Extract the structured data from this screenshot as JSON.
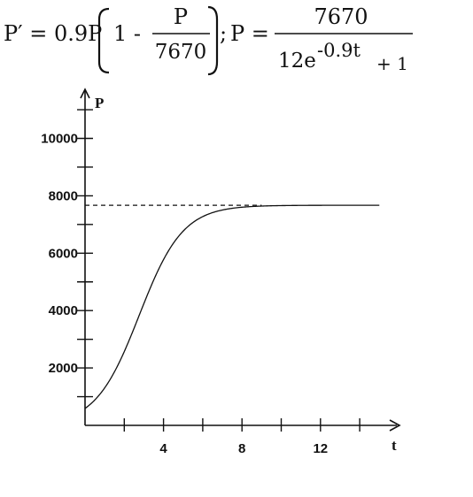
{
  "equation": {
    "deriv_lhs": "P′ = 0.9P",
    "one_minus": "1 -",
    "frac_num": "P",
    "frac_den": "7670",
    "semicolon": ";",
    "p_equals": "P =",
    "rhs_num": "7670",
    "rhs_den_base": "12e",
    "rhs_den_exp": "-0.9t",
    "rhs_den_tail": "+ 1"
  },
  "chart_data": {
    "type": "line",
    "xlabel": "t",
    "ylabel": "P",
    "xlim": [
      0,
      16
    ],
    "ylim": [
      0,
      11500
    ],
    "x_ticks_major": [
      4,
      8,
      12
    ],
    "x_ticks_minor": [
      2,
      4,
      6,
      8,
      10,
      12,
      14
    ],
    "y_ticks_labeled": [
      2000,
      4000,
      6000,
      8000,
      10000
    ],
    "y_ticks_all": [
      1000,
      2000,
      3000,
      4000,
      5000,
      6000,
      7000,
      8000,
      9000,
      10000,
      11000
    ],
    "asymptote": 7670,
    "curve": {
      "K": 7670,
      "A": 12,
      "r": 0.9,
      "t_start": 0,
      "t_end": 15
    },
    "grid": false,
    "colors": {
      "line": "#111111",
      "asymptote": "#111111"
    }
  }
}
